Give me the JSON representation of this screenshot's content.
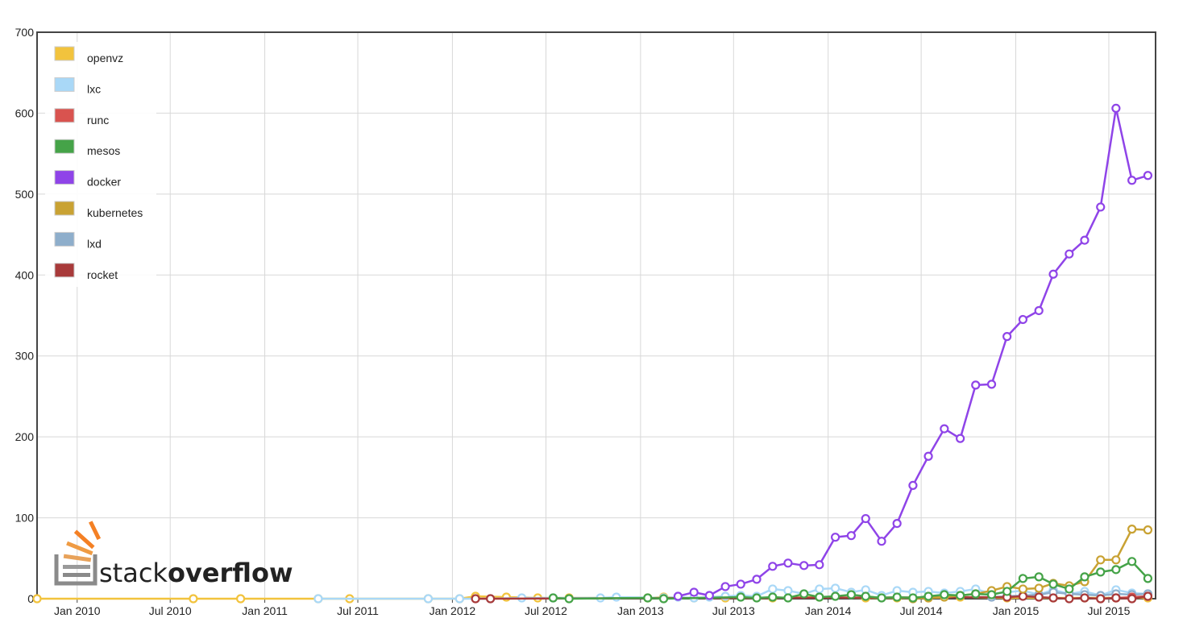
{
  "chart_data": {
    "type": "line",
    "title": "",
    "xlabel": "",
    "ylabel": "",
    "x_ticks": [
      "Jan 2010",
      "Jul 2010",
      "Jan 2011",
      "Jul 2011",
      "Jan 2012",
      "Jul 2012",
      "Jan 2013",
      "Jul 2013",
      "Jan 2014",
      "Jul 2014",
      "Jan 2015",
      "Jul 2015"
    ],
    "y_ticks": [
      "0",
      "100",
      "200",
      "300",
      "400",
      "500",
      "600",
      "700"
    ],
    "ylim": [
      0,
      700
    ],
    "xlim": [
      "2009-10-15",
      "2015-09-30"
    ],
    "grid": true,
    "legend_position": "top-left",
    "series": [
      {
        "name": "openvz",
        "color": "#f2c33d",
        "points": [
          [
            "2009-10",
            0
          ],
          [
            "2010-08",
            0
          ],
          [
            "2010-11",
            0
          ],
          [
            "2011-04",
            0
          ],
          [
            "2011-06",
            0
          ],
          [
            "2011-11",
            0
          ],
          [
            "2012-01",
            0
          ],
          [
            "2012-02",
            3
          ],
          [
            "2012-04",
            2
          ],
          [
            "2012-06",
            1
          ],
          [
            "2012-08",
            1
          ],
          [
            "2013-01",
            1
          ],
          [
            "2013-02",
            2
          ],
          [
            "2013-04",
            1
          ],
          [
            "2013-06",
            1
          ],
          [
            "2013-09",
            1
          ],
          [
            "2013-12",
            2
          ],
          [
            "2014-03",
            1
          ],
          [
            "2014-05",
            1
          ],
          [
            "2014-07",
            1
          ],
          [
            "2014-09",
            2
          ],
          [
            "2014-12",
            1
          ],
          [
            "2015-03",
            1
          ],
          [
            "2015-05",
            1
          ],
          [
            "2015-07",
            1
          ],
          [
            "2015-09",
            1
          ]
        ]
      },
      {
        "name": "lxc",
        "color": "#a9d8f7",
        "points": [
          [
            "2011-04",
            0
          ],
          [
            "2011-11",
            0
          ],
          [
            "2012-01",
            0
          ],
          [
            "2012-03",
            0
          ],
          [
            "2012-05",
            1
          ],
          [
            "2012-07",
            1
          ],
          [
            "2012-10",
            1
          ],
          [
            "2012-11",
            2
          ],
          [
            "2013-02",
            1
          ],
          [
            "2013-03",
            2
          ],
          [
            "2013-04",
            1
          ],
          [
            "2013-05",
            2
          ],
          [
            "2013-06",
            3
          ],
          [
            "2013-07",
            4
          ],
          [
            "2013-08",
            3
          ],
          [
            "2013-09",
            12
          ],
          [
            "2013-10",
            10
          ],
          [
            "2013-11",
            6
          ],
          [
            "2013-12",
            12
          ],
          [
            "2014-01",
            13
          ],
          [
            "2014-02",
            8
          ],
          [
            "2014-03",
            11
          ],
          [
            "2014-04",
            4
          ],
          [
            "2014-05",
            10
          ],
          [
            "2014-06",
            8
          ],
          [
            "2014-07",
            9
          ],
          [
            "2014-08",
            7
          ],
          [
            "2014-09",
            9
          ],
          [
            "2014-10",
            12
          ],
          [
            "2014-11",
            6
          ],
          [
            "2014-12",
            8
          ],
          [
            "2015-01",
            10
          ],
          [
            "2015-02",
            5
          ],
          [
            "2015-03",
            11
          ],
          [
            "2015-04",
            6
          ],
          [
            "2015-05",
            9
          ],
          [
            "2015-06",
            4
          ],
          [
            "2015-07",
            11
          ],
          [
            "2015-08",
            7
          ],
          [
            "2015-09",
            6
          ]
        ]
      },
      {
        "name": "runc",
        "color": "#d9534f",
        "points": [
          [
            "2015-06",
            0
          ],
          [
            "2015-07",
            1
          ],
          [
            "2015-08",
            2
          ],
          [
            "2015-09",
            3
          ]
        ]
      },
      {
        "name": "mesos",
        "color": "#45a348",
        "points": [
          [
            "2012-07",
            1
          ],
          [
            "2012-08",
            0
          ],
          [
            "2013-01",
            1
          ],
          [
            "2013-02",
            0
          ],
          [
            "2013-07",
            2
          ],
          [
            "2013-08",
            1
          ],
          [
            "2013-09",
            2
          ],
          [
            "2013-10",
            1
          ],
          [
            "2013-11",
            6
          ],
          [
            "2013-12",
            2
          ],
          [
            "2014-01",
            3
          ],
          [
            "2014-02",
            5
          ],
          [
            "2014-03",
            3
          ],
          [
            "2014-04",
            1
          ],
          [
            "2014-05",
            2
          ],
          [
            "2014-06",
            1
          ],
          [
            "2014-07",
            3
          ],
          [
            "2014-08",
            5
          ],
          [
            "2014-09",
            4
          ],
          [
            "2014-10",
            6
          ],
          [
            "2014-11",
            5
          ],
          [
            "2014-12",
            9
          ],
          [
            "2015-01",
            25
          ],
          [
            "2015-02",
            27
          ],
          [
            "2015-03",
            18
          ],
          [
            "2015-04",
            12
          ],
          [
            "2015-05",
            27
          ],
          [
            "2015-06",
            33
          ],
          [
            "2015-07",
            36
          ],
          [
            "2015-08",
            46
          ],
          [
            "2015-09",
            25
          ]
        ]
      },
      {
        "name": "docker",
        "color": "#8f44e8",
        "points": [
          [
            "2013-03",
            3
          ],
          [
            "2013-04",
            8
          ],
          [
            "2013-05",
            4
          ],
          [
            "2013-06",
            15
          ],
          [
            "2013-07",
            18
          ],
          [
            "2013-08",
            24
          ],
          [
            "2013-09",
            40
          ],
          [
            "2013-10",
            44
          ],
          [
            "2013-11",
            41
          ],
          [
            "2013-12",
            42
          ],
          [
            "2014-01",
            76
          ],
          [
            "2014-02",
            78
          ],
          [
            "2014-03",
            99
          ],
          [
            "2014-04",
            71
          ],
          [
            "2014-05",
            93
          ],
          [
            "2014-06",
            140
          ],
          [
            "2014-07",
            176
          ],
          [
            "2014-08",
            210
          ],
          [
            "2014-09",
            198
          ],
          [
            "2014-10",
            264
          ],
          [
            "2014-11",
            265
          ],
          [
            "2014-12",
            324
          ],
          [
            "2015-01",
            345
          ],
          [
            "2015-02",
            356
          ],
          [
            "2015-03",
            401
          ],
          [
            "2015-04",
            426
          ],
          [
            "2015-05",
            443
          ],
          [
            "2015-06",
            484
          ],
          [
            "2015-07",
            606
          ],
          [
            "2015-08",
            517
          ],
          [
            "2015-09",
            523
          ]
        ]
      },
      {
        "name": "kubernetes",
        "color": "#c9a233",
        "points": [
          [
            "2014-06",
            0
          ],
          [
            "2014-07",
            1
          ],
          [
            "2014-08",
            2
          ],
          [
            "2014-09",
            4
          ],
          [
            "2014-10",
            6
          ],
          [
            "2014-11",
            10
          ],
          [
            "2014-12",
            15
          ],
          [
            "2015-01",
            12
          ],
          [
            "2015-02",
            13
          ],
          [
            "2015-03",
            19
          ],
          [
            "2015-04",
            16
          ],
          [
            "2015-05",
            21
          ],
          [
            "2015-06",
            48
          ],
          [
            "2015-07",
            48
          ],
          [
            "2015-08",
            86
          ],
          [
            "2015-09",
            85
          ]
        ]
      },
      {
        "name": "lxd",
        "color": "#8eaecb",
        "points": [
          [
            "2014-11",
            2
          ],
          [
            "2014-12",
            3
          ],
          [
            "2015-01",
            4
          ],
          [
            "2015-02",
            5
          ],
          [
            "2015-03",
            8
          ],
          [
            "2015-04",
            6
          ],
          [
            "2015-05",
            5
          ],
          [
            "2015-06",
            4
          ],
          [
            "2015-07",
            6
          ],
          [
            "2015-08",
            5
          ],
          [
            "2015-09",
            6
          ]
        ]
      },
      {
        "name": "rocket",
        "color": "#a83a3a",
        "points": [
          [
            "2012-02",
            0
          ],
          [
            "2012-03",
            0
          ],
          [
            "2014-12",
            2
          ],
          [
            "2015-01",
            3
          ],
          [
            "2015-02",
            2
          ],
          [
            "2015-03",
            1
          ],
          [
            "2015-04",
            0
          ],
          [
            "2015-05",
            1
          ],
          [
            "2015-06",
            0
          ],
          [
            "2015-07",
            1
          ],
          [
            "2015-08",
            0
          ],
          [
            "2015-09",
            3
          ]
        ]
      }
    ]
  },
  "watermark": {
    "text_light": "stack",
    "text_bold": "overflow"
  }
}
